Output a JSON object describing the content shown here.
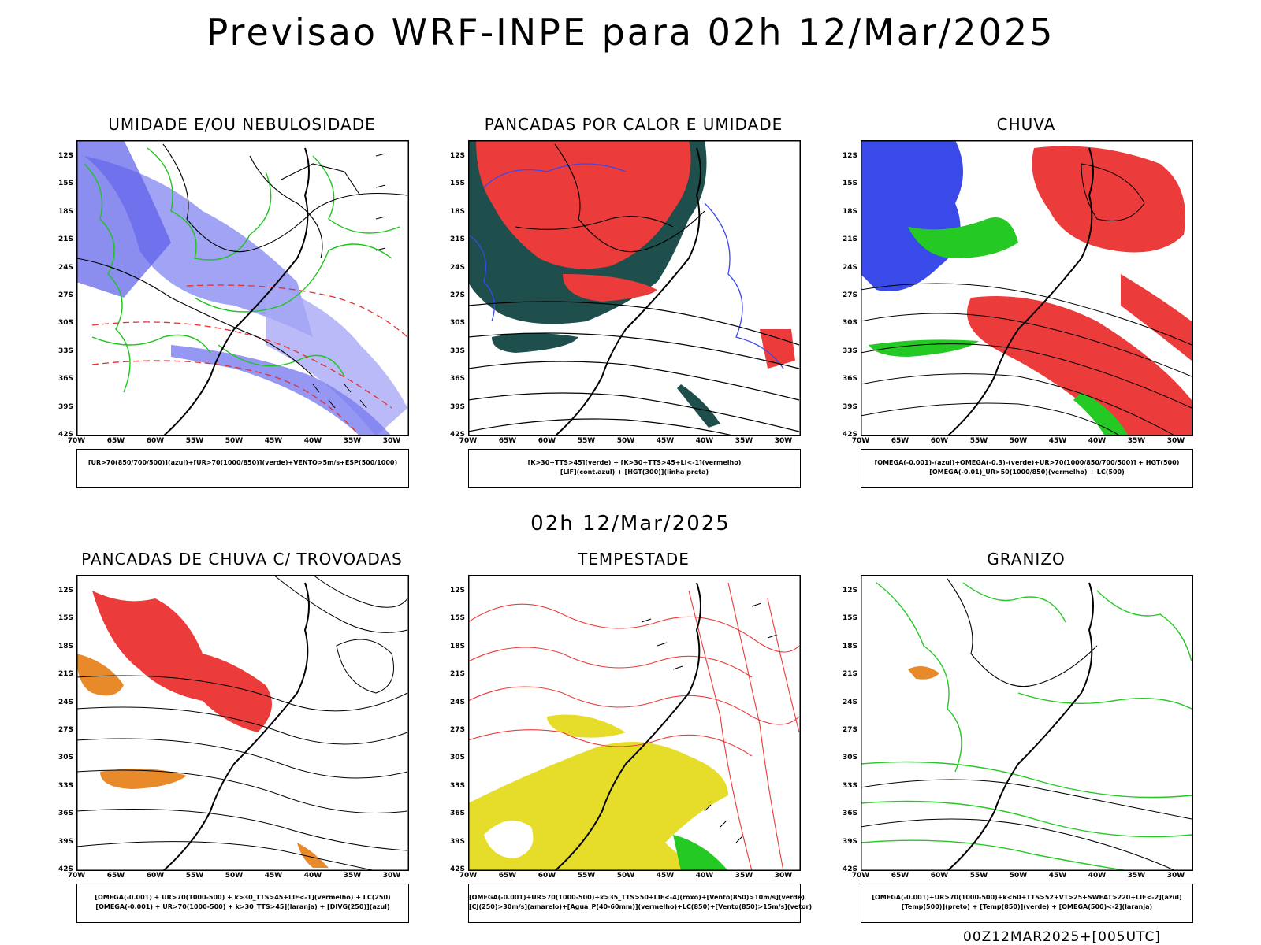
{
  "header": {
    "title": "Previsao WRF-INPE  para 02h 12/Mar/2025"
  },
  "middle_date": "02h 12/Mar/2025",
  "footer": "00Z12MAR2025+[005UTC]",
  "lat_labels": [
    "12S",
    "15S",
    "18S",
    "21S",
    "24S",
    "27S",
    "30S",
    "33S",
    "36S",
    "39S",
    "42S"
  ],
  "lon_labels": [
    "70W",
    "65W",
    "60W",
    "55W",
    "50W",
    "45W",
    "40W",
    "35W",
    "30W"
  ],
  "panels": [
    {
      "title": "UMIDADE E/OU NEBULOSIDADE",
      "legend": [
        "[UR>70(850/700/500)](azul)+[UR>70(1000/850)](verde)+VENTO>5m/s+ESP(500/1000)"
      ]
    },
    {
      "title": "PANCADAS POR CALOR E UMIDADE",
      "legend": [
        "[K>30+TTS>45](verde) + [K>30+TTS>45+LI<-1](vermelho)",
        "[LIF](cont.azul) + [HGT(300)](linha preta)"
      ]
    },
    {
      "title": "CHUVA",
      "legend": [
        "[OMEGA(-0.001)-(azul)+OMEGA(-0.3)-(verde)+UR>70(1000/850/700/500)] + HGT(500)",
        "[OMEGA(-0.01)_UR>50(1000/850)(vermelho) + LC(500)"
      ]
    },
    {
      "title": "PANCADAS DE CHUVA C/ TROVOADAS",
      "legend": [
        "[OMEGA(-0.001) + UR>70(1000-500) + k>30_TTS>45+LIF<-1](vermelho) + LC(250)",
        "[OMEGA(-0.001) + UR>70(1000-500) + k>30_TTS>45](laranja) + [DIVG(250)](azul)"
      ]
    },
    {
      "title": "TEMPESTADE",
      "legend": [
        "[OMEGA(-0.001)+UR>70(1000-500)+k>35_TTS>50+LIF<-4](roxo)+[Vento(850)>10m/s](verde)",
        "[CJ(250)>30m/s](amarelo)+[Agua_P(40-60mm)](vermelho)+LC(850)+[Vento(850)>15m/s](vetor)"
      ]
    },
    {
      "title": "GRANIZO",
      "legend": [
        "[OMEGA(-0.001)+UR>70(1000-500)+k<60+TTS>52+VT>25+SWEAT>220+LIF<-2](azul)",
        "[Temp(500)](preto) + [Temp(850)](verde) + [OMEGA(500)<-2](laranja)"
      ]
    }
  ]
}
